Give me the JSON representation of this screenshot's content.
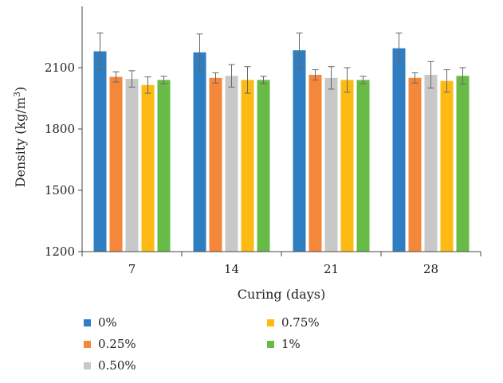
{
  "chart_data": {
    "type": "bar",
    "xlabel": "Curing (days)",
    "ylabel_main": "Density (kg/m",
    "ylabel_sup": "3",
    "ylabel_close": ")",
    "ylim": [
      1200,
      2400
    ],
    "yticks": [
      1200,
      1500,
      1800,
      2100
    ],
    "grid": false,
    "legend_position": "bottom",
    "categories": [
      "7",
      "14",
      "21",
      "28"
    ],
    "series": [
      {
        "name": "0%",
        "color": "#2E7EC1",
        "values": [
          2180,
          2175,
          2185,
          2195
        ],
        "errors": [
          90,
          90,
          85,
          75
        ]
      },
      {
        "name": "0.25%",
        "color": "#F5873A",
        "values": [
          2055,
          2050,
          2065,
          2050
        ],
        "errors": [
          25,
          25,
          25,
          25
        ]
      },
      {
        "name": "0.50%",
        "color": "#C8C8C8",
        "values": [
          2045,
          2060,
          2050,
          2065
        ],
        "errors": [
          40,
          55,
          55,
          65
        ]
      },
      {
        "name": "0.75%",
        "color": "#FDBA13",
        "values": [
          2015,
          2040,
          2040,
          2035
        ],
        "errors": [
          40,
          65,
          60,
          55
        ]
      },
      {
        "name": "1%",
        "color": "#67BB46",
        "values": [
          2040,
          2040,
          2040,
          2060
        ],
        "errors": [
          18,
          18,
          18,
          40
        ]
      }
    ]
  }
}
